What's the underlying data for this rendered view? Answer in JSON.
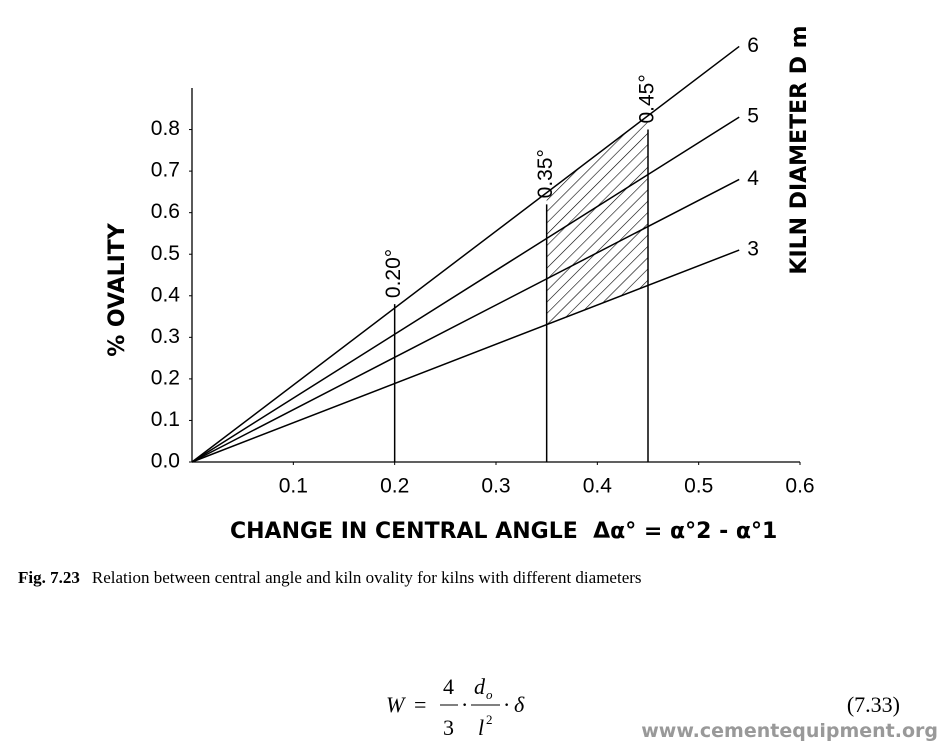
{
  "chart_data": {
    "type": "line",
    "x_label": "CHANGE IN CENTRAL ANGLE  Δα° = α°2 - α°1",
    "y_label": "% OVALITY",
    "legend_title": "KILN DIAMETER D m",
    "x": [
      0,
      0.54
    ],
    "series": [
      {
        "name": "6",
        "color": "#000000",
        "values": [
          0,
          1.0
        ]
      },
      {
        "name": "5",
        "color": "#000000",
        "values": [
          0,
          0.83
        ]
      },
      {
        "name": "4",
        "color": "#000000",
        "values": [
          0,
          0.68
        ]
      },
      {
        "name": "3",
        "color": "#000000",
        "values": [
          0,
          0.51
        ]
      }
    ],
    "verticals": [
      {
        "label": "0.20°",
        "x": 0.2,
        "top": 0.38
      },
      {
        "label": "0.35°",
        "x": 0.35,
        "top": 0.62
      },
      {
        "label": "0.45°",
        "x": 0.45,
        "top": 0.8
      }
    ],
    "xlim": [
      0,
      0.6
    ],
    "xticks": [
      0.1,
      0.2,
      0.3,
      0.4,
      0.5,
      0.6
    ],
    "ylim": [
      0,
      0.9
    ],
    "yticks": [
      {
        "value": 0,
        "label": "0.0"
      },
      0.1,
      0.2,
      0.3,
      0.4,
      0.5,
      0.6,
      0.7,
      0.8
    ]
  },
  "caption": {
    "label": "Fig. 7.23",
    "text": "Relation between central angle and kiln ovality for kilns with different diameters"
  },
  "equation": {
    "lhs": "W",
    "equals": "=",
    "num1": "4",
    "den1": "3",
    "dot": "·",
    "num2": "d",
    "sub": "o",
    "den2": "l",
    "sup": "2",
    "delta": "δ",
    "number": "(7.33)"
  },
  "watermark": "www.cementequipment.org"
}
